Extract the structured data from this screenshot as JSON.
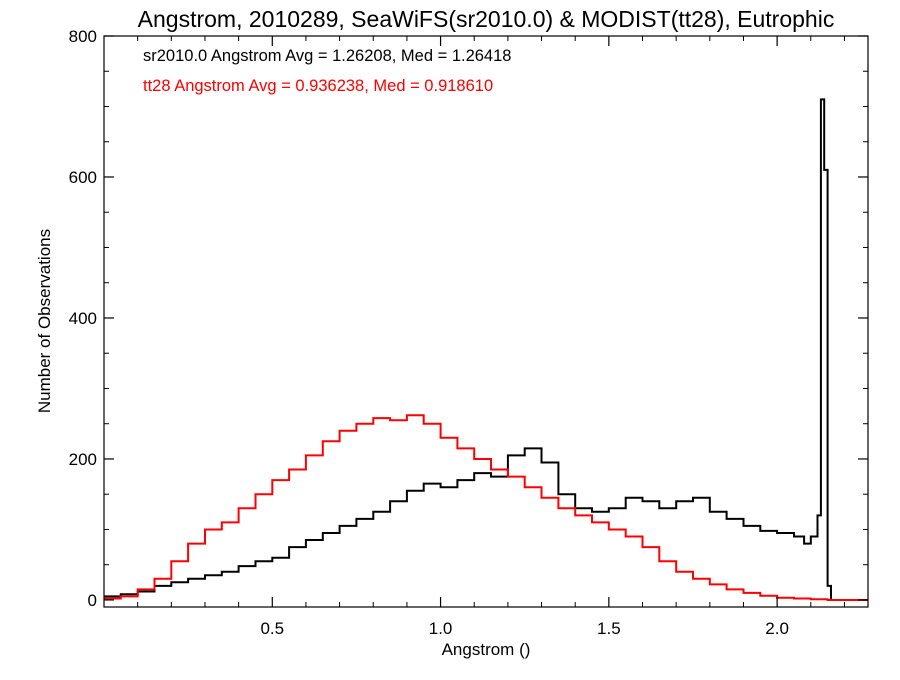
{
  "chart_data": {
    "type": "histogram-step",
    "title": "Angstrom, 2010289, SeaWiFS(sr2010.0) & MODIST(tt28), Eutrophic",
    "xlabel": "Angstrom ()",
    "ylabel": "Number of Observations",
    "xlim": [
      0.0,
      2.27
    ],
    "ylim": [
      -10,
      800
    ],
    "x_ticks": [
      0.5,
      1.0,
      1.5,
      2.0
    ],
    "x_tick_labels": [
      "0.5",
      "1.0",
      "1.5",
      "2.0"
    ],
    "y_ticks": [
      0,
      200,
      400,
      600,
      800
    ],
    "y_tick_labels": [
      "0",
      "200",
      "400",
      "600",
      "800"
    ],
    "annotations": [
      {
        "text": "sr2010.0 Angstrom Avg = 1.26208, Med = 1.26418",
        "color": "#000000"
      },
      {
        "text": "tt28 Angstrom Avg = 0.936238, Med = 0.918610",
        "color": "#ff0000"
      }
    ],
    "series": [
      {
        "color": "#000000",
        "x": [
          0.0,
          0.05,
          0.1,
          0.15,
          0.2,
          0.25,
          0.3,
          0.35,
          0.4,
          0.45,
          0.5,
          0.55,
          0.6,
          0.65,
          0.7,
          0.75,
          0.8,
          0.85,
          0.9,
          0.95,
          1.0,
          1.05,
          1.1,
          1.15,
          1.2,
          1.25,
          1.3,
          1.35,
          1.4,
          1.45,
          1.5,
          1.55,
          1.6,
          1.65,
          1.7,
          1.75,
          1.8,
          1.85,
          1.9,
          1.95,
          2.0,
          2.05,
          2.08,
          2.1,
          2.12,
          2.13,
          2.14,
          2.15,
          2.16,
          2.2,
          2.27
        ],
        "y": [
          5,
          8,
          12,
          20,
          25,
          30,
          35,
          40,
          48,
          55,
          60,
          75,
          85,
          95,
          105,
          115,
          125,
          140,
          155,
          165,
          160,
          170,
          180,
          175,
          205,
          215,
          195,
          150,
          130,
          125,
          130,
          145,
          140,
          130,
          140,
          145,
          125,
          115,
          105,
          98,
          95,
          90,
          80,
          90,
          120,
          710,
          610,
          20,
          0,
          0,
          0
        ]
      },
      {
        "color": "#ff0000",
        "x": [
          0.0,
          0.05,
          0.1,
          0.15,
          0.2,
          0.25,
          0.3,
          0.35,
          0.4,
          0.45,
          0.5,
          0.55,
          0.6,
          0.65,
          0.7,
          0.75,
          0.8,
          0.85,
          0.9,
          0.95,
          1.0,
          1.05,
          1.1,
          1.15,
          1.2,
          1.25,
          1.3,
          1.35,
          1.4,
          1.45,
          1.5,
          1.55,
          1.6,
          1.65,
          1.7,
          1.75,
          1.8,
          1.85,
          1.9,
          1.95,
          2.0,
          2.05,
          2.1,
          2.15,
          2.2,
          2.27
        ],
        "y": [
          2,
          5,
          15,
          30,
          55,
          80,
          100,
          110,
          130,
          150,
          170,
          185,
          205,
          225,
          240,
          250,
          258,
          255,
          262,
          250,
          230,
          215,
          200,
          185,
          175,
          160,
          145,
          130,
          120,
          110,
          100,
          90,
          75,
          55,
          40,
          30,
          22,
          15,
          10,
          6,
          3,
          2,
          1,
          0,
          0,
          0
        ]
      }
    ]
  }
}
